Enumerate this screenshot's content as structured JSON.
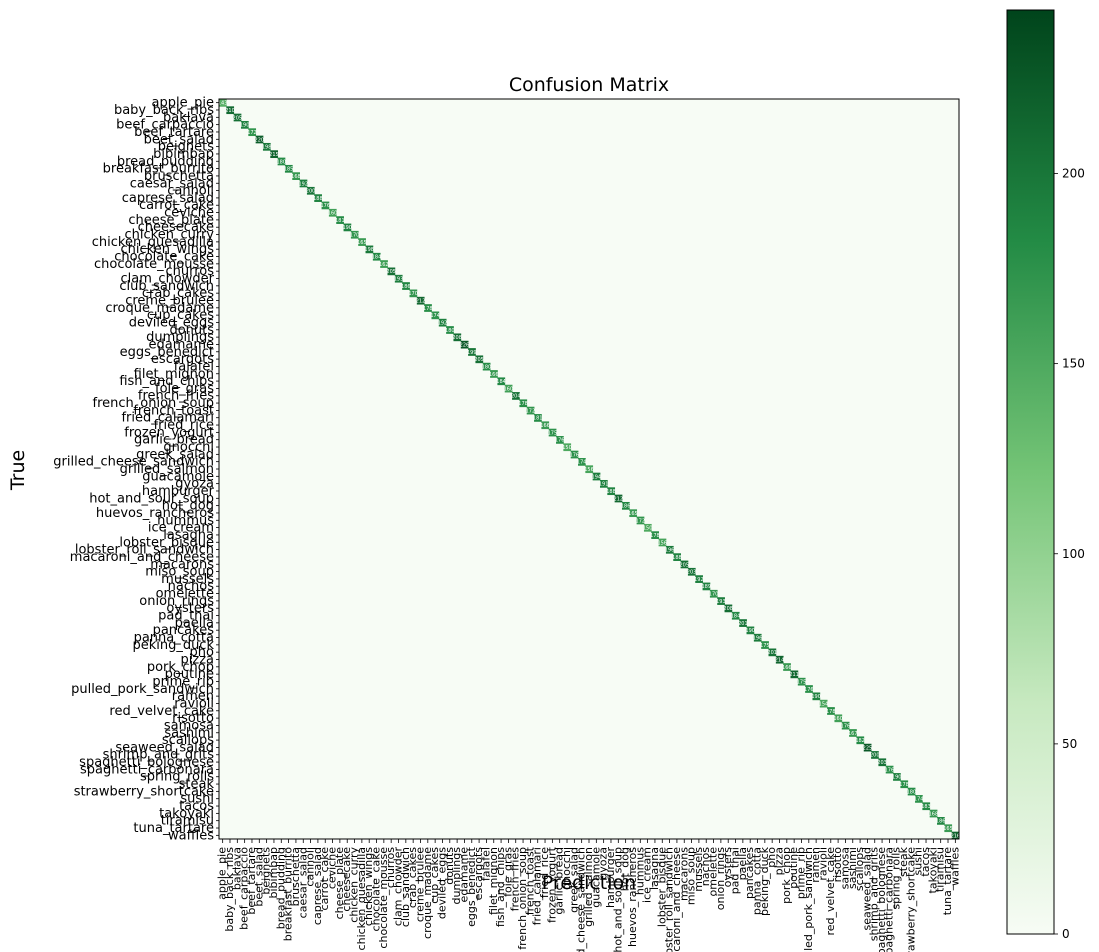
{
  "chart_data": {
    "type": "heatmap",
    "title": "Confusion Matrix",
    "xlabel": "Prediction",
    "ylabel": "True",
    "colormap": "Greens",
    "colors": {
      "low": "#f7fcf5",
      "mid": "#74c476",
      "high": "#00441b"
    },
    "colorbar": {
      "min": 0,
      "max": 243,
      "ticks": [
        0,
        50,
        100,
        150,
        200
      ]
    },
    "classes": [
      "apple_pie",
      "baby_back_ribs",
      "baklava",
      "beef_carpaccio",
      "beef_tartare",
      "beet_salad",
      "beignets",
      "bibimbap",
      "bread_pudding",
      "breakfast_burrito",
      "bruschetta",
      "caesar_salad",
      "cannoli",
      "caprese_salad",
      "carrot_cake",
      "ceviche",
      "cheese_plate",
      "cheesecake",
      "chicken_curry",
      "chicken_quesadilla",
      "chicken_wings",
      "chocolate_cake",
      "chocolate_mousse",
      "churros",
      "clam_chowder",
      "club_sandwich",
      "crab_cakes",
      "creme_brulee",
      "croque_madame",
      "cup_cakes",
      "deviled_eggs",
      "donuts",
      "dumplings",
      "edamame",
      "eggs_benedict",
      "escargots",
      "falafel",
      "filet_mignon",
      "fish_and_chips",
      "foie_gras",
      "french_fries",
      "french_onion_soup",
      "french_toast",
      "fried_calamari",
      "fried_rice",
      "frozen_yogurt",
      "garlic_bread",
      "gnocchi",
      "greek_salad",
      "grilled_cheese_sandwich",
      "grilled_salmon",
      "guacamole",
      "gyoza",
      "hamburger",
      "hot_and_sour_soup",
      "hot_dog",
      "huevos_rancheros",
      "hummus",
      "ice_cream",
      "lasagna",
      "lobster_bisque",
      "lobster_roll_sandwich",
      "macaroni_and_cheese",
      "macarons",
      "miso_soup",
      "mussels",
      "nachos",
      "omelette",
      "onion_rings",
      "oysters",
      "pad_thai",
      "paella",
      "pancakes",
      "panna_cotta",
      "peking_duck",
      "pho",
      "pizza",
      "pork_chop",
      "poutine",
      "prime_rib",
      "pulled_pork_sandwich",
      "ramen",
      "ravioli",
      "red_velvet_cake",
      "risotto",
      "samosa",
      "sashimi",
      "scallops",
      "seaweed_salad",
      "shrimp_and_grits",
      "spaghetti_bolognese",
      "spaghetti_carbonara",
      "spring_rolls",
      "steak",
      "strawberry_shortcake",
      "sushi",
      "tacos",
      "takoyaki",
      "tiramisu",
      "tuna_tartare",
      "waffles"
    ],
    "diagonal": [
      143,
      210,
      205,
      190,
      172,
      220,
      198,
      215,
      180,
      185,
      168,
      192,
      200,
      188,
      176,
      160,
      181,
      190,
      170,
      165,
      198,
      184,
      162,
      205,
      193,
      186,
      170,
      212,
      178,
      174,
      192,
      180,
      208,
      226,
      199,
      205,
      180,
      166,
      184,
      160,
      204,
      178,
      172,
      181,
      166,
      175,
      176,
      150,
      176,
      174,
      156,
      194,
      191,
      188,
      212,
      186,
      165,
      172,
      150,
      178,
      156,
      196,
      188,
      205,
      203,
      192,
      189,
      170,
      193,
      208,
      184,
      201,
      190,
      196,
      175,
      201,
      214,
      166,
      211,
      175,
      176,
      190,
      154,
      178,
      160,
      176,
      167,
      182,
      225,
      200,
      203,
      176,
      190,
      178,
      180,
      174,
      183,
      168,
      186,
      165,
      216
    ]
  }
}
